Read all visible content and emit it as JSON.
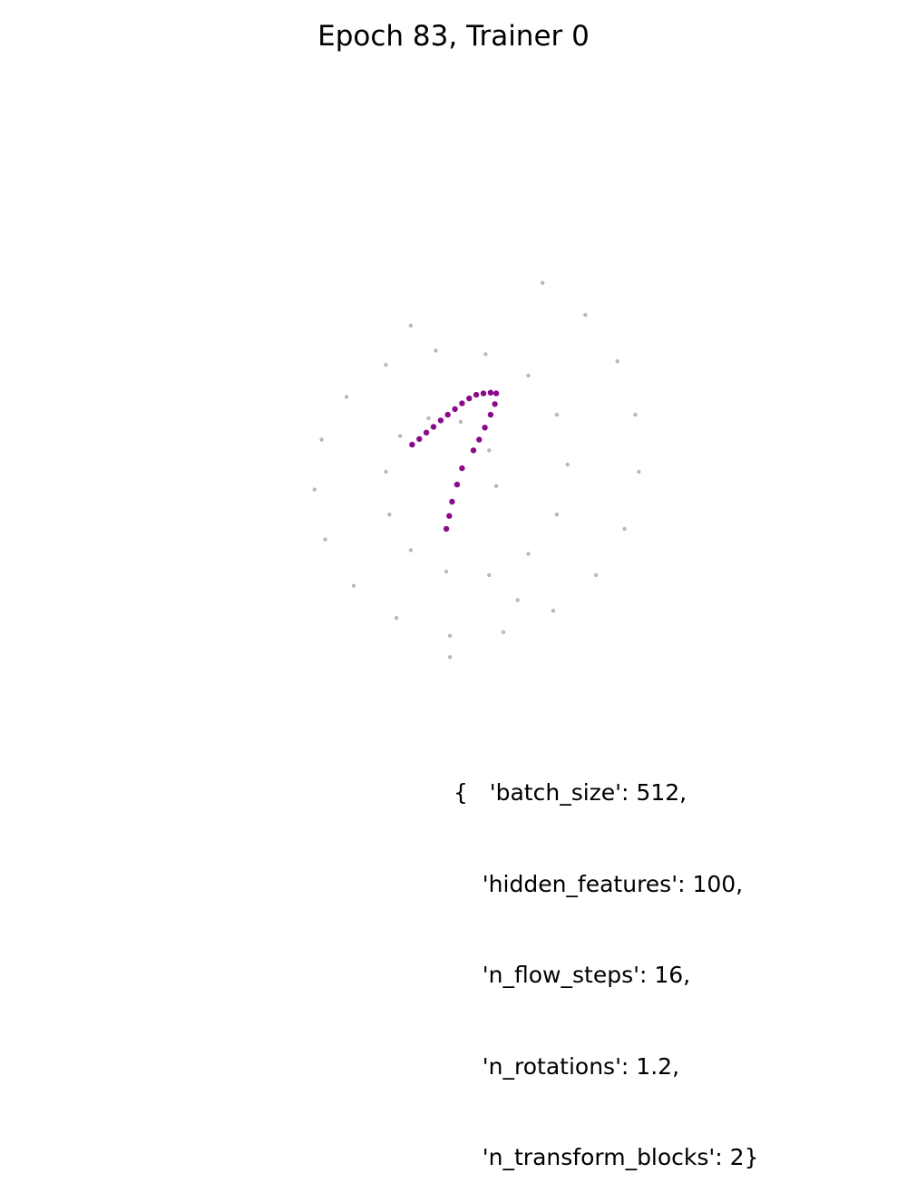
{
  "chart_data": {
    "type": "scatter",
    "title": "Epoch 83, Trainer 0",
    "xlabel": "",
    "ylabel": "",
    "axes_visible": false,
    "grid": false,
    "xlim": [
      -4.2,
      4.2
    ],
    "ylim": [
      -4.2,
      4.2
    ],
    "series": [
      {
        "role": "target",
        "color": "#808080",
        "points": [
          [
            0.6,
            -0.2
          ],
          [
            0.5,
            0.3
          ],
          [
            0.1,
            0.7
          ],
          [
            -0.35,
            0.75
          ],
          [
            -0.75,
            0.5
          ],
          [
            -0.95,
            0.0
          ],
          [
            -0.9,
            -0.6
          ],
          [
            -0.6,
            -1.1
          ],
          [
            -0.1,
            -1.4
          ],
          [
            0.5,
            -1.45
          ],
          [
            1.05,
            -1.15
          ],
          [
            1.45,
            -0.6
          ],
          [
            1.6,
            0.1
          ],
          [
            1.45,
            0.8
          ],
          [
            1.05,
            1.35
          ],
          [
            0.45,
            1.65
          ],
          [
            -0.25,
            1.7
          ],
          [
            -0.95,
            1.5
          ],
          [
            -1.5,
            1.05
          ],
          [
            -1.85,
            0.45
          ],
          [
            -1.95,
            -0.25
          ],
          [
            -1.8,
            -0.95
          ],
          [
            -1.4,
            -1.6
          ],
          [
            -0.8,
            -2.05
          ],
          [
            -0.05,
            -2.3
          ],
          [
            0.7,
            -2.25
          ],
          [
            1.4,
            -1.95
          ],
          [
            2.0,
            -1.45
          ],
          [
            2.4,
            -0.8
          ],
          [
            2.6,
            0.0
          ],
          [
            2.55,
            0.8
          ],
          [
            2.3,
            1.55
          ],
          [
            1.85,
            2.2
          ],
          [
            1.25,
            2.65
          ],
          [
            -0.6,
            2.05
          ],
          [
            -0.05,
            -2.6
          ],
          [
            0.9,
            -1.8
          ]
        ]
      },
      {
        "role": "samples",
        "color": "#8b0a8b",
        "points": [
          [
            -0.58,
            0.38
          ],
          [
            -0.48,
            0.46
          ],
          [
            -0.38,
            0.55
          ],
          [
            -0.28,
            0.63
          ],
          [
            -0.18,
            0.72
          ],
          [
            -0.08,
            0.8
          ],
          [
            0.02,
            0.88
          ],
          [
            0.12,
            0.96
          ],
          [
            0.22,
            1.03
          ],
          [
            0.32,
            1.08
          ],
          [
            0.42,
            1.1
          ],
          [
            0.52,
            1.11
          ],
          [
            0.6,
            1.1
          ],
          [
            0.58,
            0.95
          ],
          [
            0.52,
            0.8
          ],
          [
            0.44,
            0.62
          ],
          [
            0.36,
            0.45
          ],
          [
            0.28,
            0.3
          ],
          [
            0.12,
            0.05
          ],
          [
            0.05,
            -0.18
          ],
          [
            -0.02,
            -0.42
          ],
          [
            -0.06,
            -0.62
          ],
          [
            -0.1,
            -0.8
          ]
        ]
      }
    ]
  },
  "params": {
    "lines": [
      "{   'batch_size': 512,",
      "    'hidden_features': 100,",
      "    'n_flow_steps': 16,",
      "    'n_rotations': 1.2,",
      "    'n_transform_blocks': 2}"
    ]
  }
}
